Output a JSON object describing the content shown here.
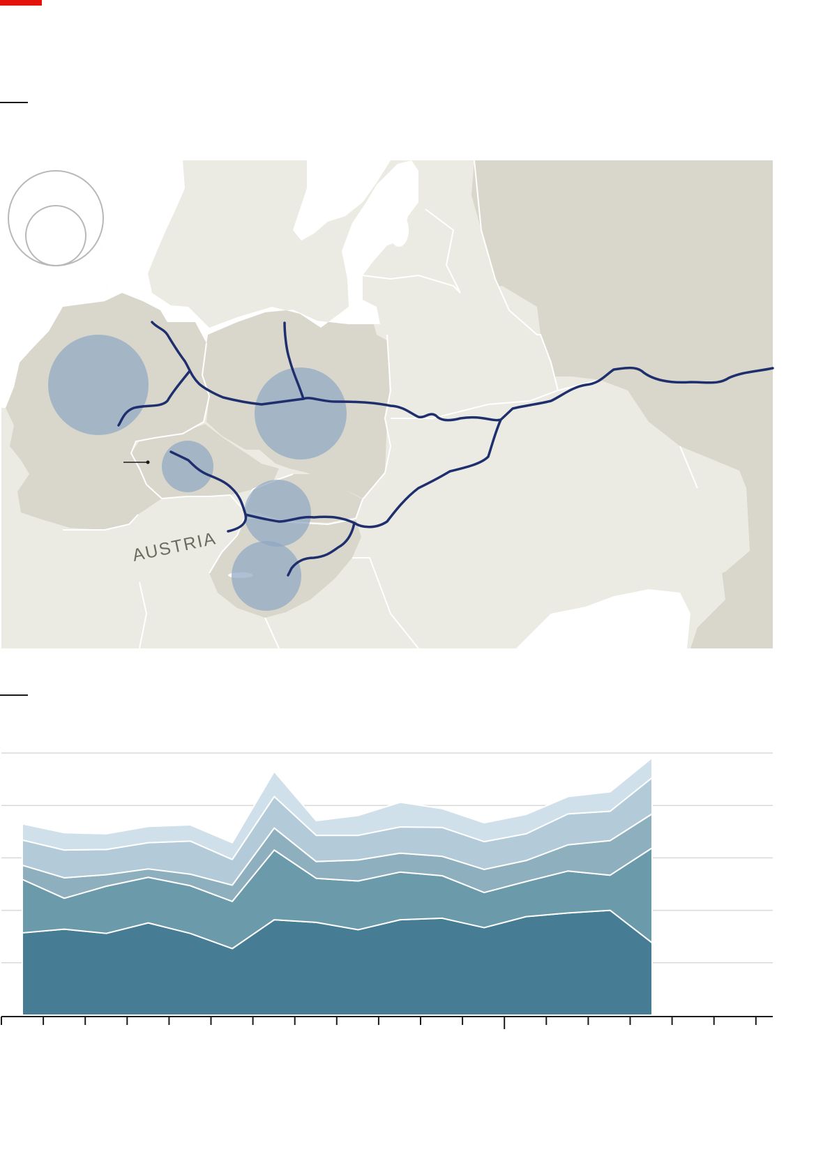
{
  "colors": {
    "accent": "#e3120b",
    "pipeline": "#1f2f6e",
    "bubble": "#8fa8c2",
    "land_focus": "#d9d7cc",
    "land_other": "#ecebe3",
    "water": "#ffffff",
    "border": "#ffffff",
    "gridline": "#d9d9d9",
    "axis": "#1a1a1a"
  },
  "map": {
    "labels": {
      "austria": "AUSTRIA"
    },
    "legend": {
      "icon": "nested-circle-size-legend"
    },
    "features": {
      "pipelines": 5,
      "bubbles": 5
    }
  },
  "chart_data": {
    "type": "area",
    "stacked": true,
    "x": [
      1,
      2,
      3,
      4,
      5,
      6,
      7,
      8,
      9,
      10,
      11,
      12,
      13,
      14,
      15,
      16
    ],
    "series": [
      {
        "color": "#467d94",
        "values": [
          15.7,
          16.4,
          15.6,
          17.6,
          15.6,
          12.7,
          18.2,
          17.7,
          16.3,
          18.2,
          18.5,
          16.7,
          18.8,
          19.5,
          20.0,
          13.8
        ]
      },
      {
        "color": "#6b9aaa",
        "values": [
          10.2,
          5.9,
          9.0,
          8.7,
          9.1,
          9.0,
          13.3,
          8.4,
          9.3,
          9.1,
          8.1,
          6.7,
          6.7,
          8.0,
          6.7,
          18.1
        ]
      },
      {
        "color": "#8eafbd",
        "values": [
          2.7,
          3.9,
          2.2,
          1.6,
          2.2,
          3.1,
          4.2,
          3.2,
          4.0,
          3.6,
          3.7,
          4.4,
          4.0,
          5.0,
          6.6,
          6.5
        ]
      },
      {
        "color": "#b3cbd9",
        "values": [
          4.8,
          5.3,
          4.8,
          5.0,
          6.3,
          4.9,
          6.0,
          5.0,
          4.7,
          5.0,
          5.5,
          5.3,
          5.1,
          5.9,
          5.6,
          6.9
        ]
      },
      {
        "color": "#d0e0ea",
        "values": [
          3.1,
          3.3,
          3.0,
          3.1,
          3.1,
          3.2,
          4.8,
          2.8,
          3.8,
          4.7,
          3.6,
          3.6,
          3.7,
          3.3,
          3.7,
          3.8
        ]
      }
    ],
    "ylim": [
      0,
      50
    ],
    "y_gridlines": [
      10,
      20,
      30,
      40,
      50
    ],
    "x_ticks": 19,
    "grid": true,
    "legend": "none"
  }
}
